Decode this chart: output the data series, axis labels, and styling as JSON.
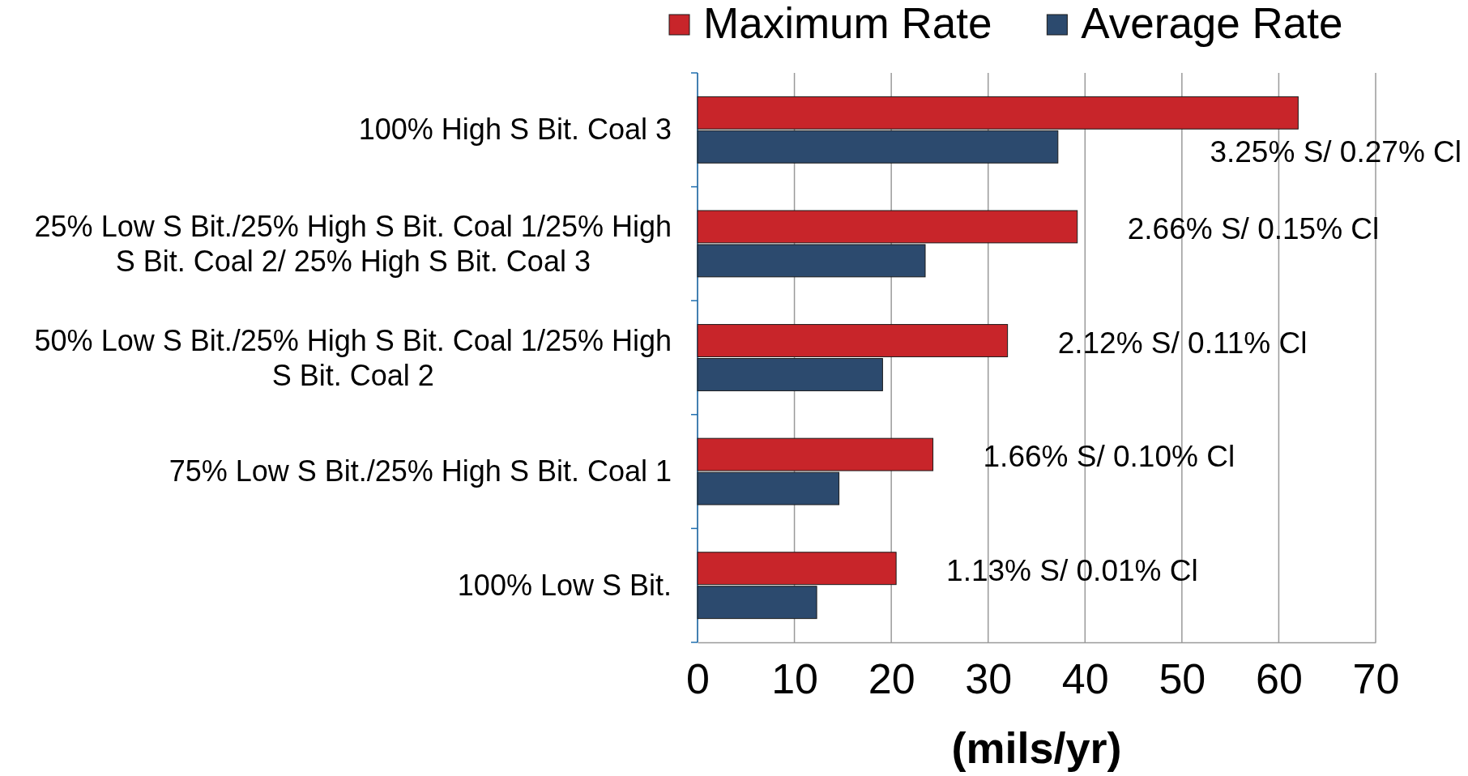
{
  "chart_data": {
    "type": "bar",
    "orientation": "horizontal",
    "xlabel": "(mils/yr)",
    "categories": [
      "100% High S Bit. Coal 3",
      "25% Low S Bit./25% High S Bit. Coal 1/25% High S Bit. Coal 2/ 25% High S Bit. Coal 3",
      "50% Low S Bit./25% High S Bit. Coal 1/25% High S Bit. Coal 2",
      "75% Low S Bit./25% High S Bit. Coal 1",
      "100% Low S Bit."
    ],
    "series": [
      {
        "name": "Maximum Rate",
        "color": "#c8252a",
        "values": [
          62,
          39.2,
          32,
          24.3,
          20.5
        ]
      },
      {
        "name": "Average Rate",
        "color": "#2c4a6e",
        "values": [
          37.2,
          23.5,
          19.1,
          14.6,
          12.3
        ]
      }
    ],
    "xlim": [
      0,
      70
    ],
    "xticks": [
      0,
      10,
      20,
      30,
      40,
      50,
      60,
      70
    ],
    "grid": "x",
    "legend": "top",
    "annotations": [
      "3.25% S/ 0.27% Cl",
      "2.66% S/ 0.15% Cl",
      "2.12% S/ 0.11% Cl",
      "1.66% S/ 0.10% Cl",
      "1.13% S/ 0.01% Cl"
    ]
  }
}
